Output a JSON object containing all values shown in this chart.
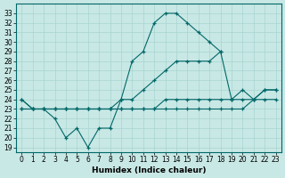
{
  "background_color": "#c8e8e5",
  "grid_color": "#a8d4d0",
  "line_color": "#006868",
  "xlim": [
    -0.5,
    23.5
  ],
  "ylim": [
    18.5,
    34.0
  ],
  "yticks": [
    19,
    20,
    21,
    22,
    23,
    24,
    25,
    26,
    27,
    28,
    29,
    30,
    31,
    32,
    33
  ],
  "xticks": [
    0,
    1,
    2,
    3,
    4,
    5,
    6,
    7,
    8,
    9,
    10,
    11,
    12,
    13,
    14,
    15,
    16,
    17,
    18,
    19,
    20,
    21,
    22,
    23
  ],
  "xlabel": "Humidex (Indice chaleur)",
  "series": [
    {
      "x": [
        0,
        1,
        2,
        3,
        4,
        5,
        6,
        7,
        8,
        9,
        10,
        11,
        12,
        13,
        14,
        15,
        16,
        17,
        18
      ],
      "y": [
        24,
        23,
        23,
        22,
        20,
        21,
        19,
        21,
        21,
        24,
        28,
        29,
        32,
        33,
        33,
        32,
        31,
        30,
        29
      ]
    },
    {
      "x": [
        0,
        1,
        2,
        3,
        4,
        5,
        6,
        7,
        8,
        9,
        10,
        11,
        12,
        13,
        14,
        15,
        16,
        17,
        18,
        19,
        20,
        21,
        22,
        23
      ],
      "y": [
        24,
        23,
        23,
        23,
        23,
        23,
        23,
        23,
        23,
        24,
        24,
        25,
        26,
        27,
        28,
        28,
        28,
        28,
        29,
        24,
        25,
        24,
        25,
        25
      ]
    },
    {
      "x": [
        0,
        1,
        2,
        3,
        4,
        5,
        6,
        7,
        8,
        9,
        10,
        11,
        12,
        13,
        14,
        15,
        16,
        17,
        18,
        19,
        20,
        21,
        22,
        23
      ],
      "y": [
        23,
        23,
        23,
        23,
        23,
        23,
        23,
        23,
        23,
        23,
        23,
        23,
        23,
        24,
        24,
        24,
        24,
        24,
        24,
        24,
        24,
        24,
        25,
        25
      ]
    },
    {
      "x": [
        0,
        1,
        2,
        3,
        4,
        5,
        6,
        7,
        8,
        9,
        10,
        11,
        12,
        13,
        14,
        15,
        16,
        17,
        18,
        19,
        20,
        21,
        22,
        23
      ],
      "y": [
        23,
        23,
        23,
        23,
        23,
        23,
        23,
        23,
        23,
        23,
        23,
        23,
        23,
        23,
        23,
        23,
        23,
        23,
        23,
        23,
        23,
        24,
        24,
        24
      ]
    }
  ]
}
